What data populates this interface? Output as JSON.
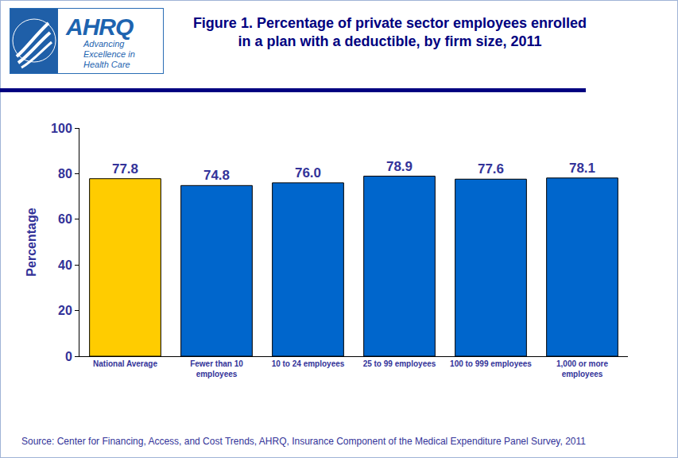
{
  "header": {
    "logo": {
      "name": "AHRQ",
      "tagline": "Advancing Excellence in Health Care"
    }
  },
  "chart_data": {
    "type": "bar",
    "title": "Figure 1. Percentage of private sector employees enrolled in a plan with a deductible, by firm size, 2011",
    "y_label": "Percentage",
    "categories": [
      "National Average",
      "Fewer than 10 employees",
      "10 to 24 employees",
      "25 to 99 employees",
      "100 to 999 employees",
      "1,000 or more employees"
    ],
    "values": [
      77.8,
      74.8,
      76.0,
      78.9,
      77.6,
      78.1
    ],
    "value_labels": [
      "77.8",
      "74.8",
      "76.0",
      "78.9",
      "77.6",
      "78.1"
    ],
    "colors": [
      "#ffcc00",
      "#0066cc",
      "#0066cc",
      "#0066cc",
      "#0066cc",
      "#0066cc"
    ],
    "ylim": [
      0,
      100
    ],
    "yticks": [
      0,
      20,
      40,
      60,
      80,
      100
    ],
    "grid": false,
    "data_labels": true,
    "annotations": [
      "Source: Center for Financing, Access, and Cost Trends, AHRQ, Insurance Component of the Medical Expenditure Panel Survey, 2011"
    ]
  }
}
